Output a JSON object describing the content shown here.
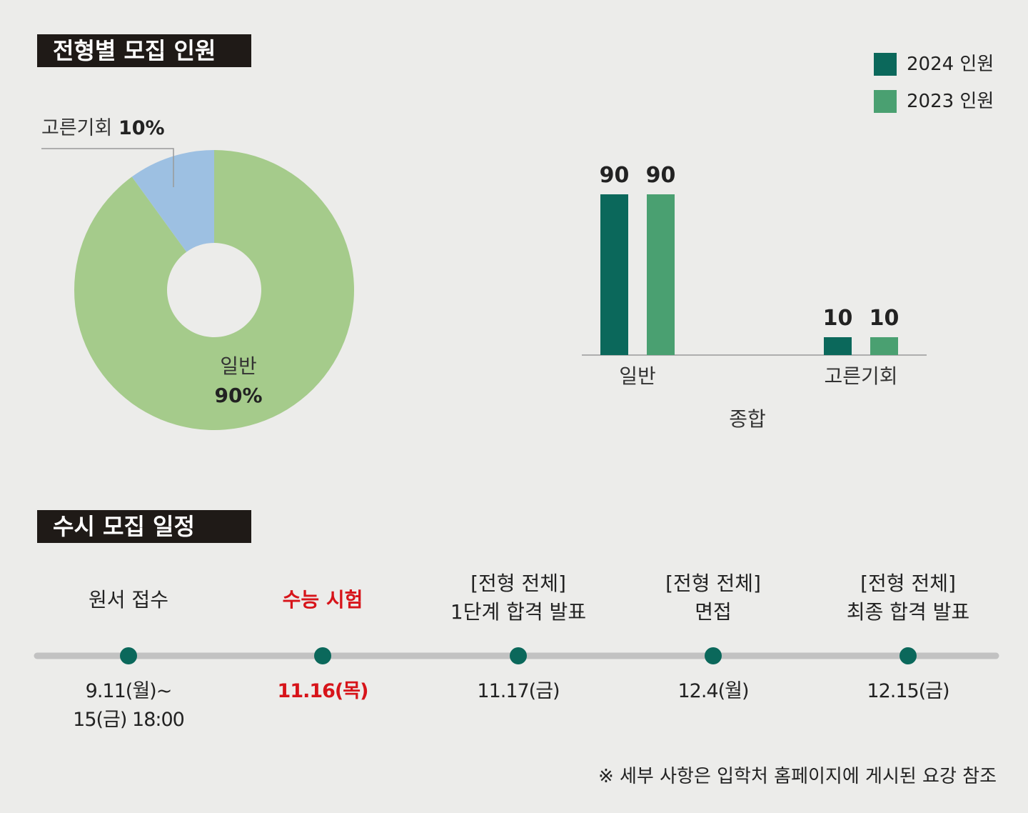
{
  "titles": {
    "recruit": "전형별 모집 인원",
    "schedule": "수시 모집 일정"
  },
  "colors": {
    "dark_green": "#0b685b",
    "mid_green": "#4aa071",
    "light_green": "#a5cb8b",
    "light_blue": "#9dc0e2",
    "red": "#d7141a",
    "timeline_line": "#c2c2c2"
  },
  "chart_data": [
    {
      "type": "pie",
      "variant": "donut",
      "labels": [
        "일반",
        "고른기회"
      ],
      "values": [
        90,
        10
      ],
      "label_texts": [
        {
          "name": "일반",
          "value": "90%"
        },
        {
          "name": "고른기회",
          "value": "10%"
        }
      ]
    },
    {
      "type": "bar",
      "categories": [
        "일반",
        "고른기회"
      ],
      "xlabel": "종합",
      "series": [
        {
          "name": "2024 인원",
          "values": [
            90,
            10
          ]
        },
        {
          "name": "2023 인원",
          "values": [
            90,
            10
          ]
        }
      ],
      "ylim": [
        0,
        90
      ],
      "legend": "top-right"
    }
  ],
  "schedule": {
    "items": [
      {
        "label": [
          "원서 접수"
        ],
        "date": [
          "9.11(월)~",
          "15(금) 18:00"
        ],
        "highlight": false
      },
      {
        "label": [
          "수능 시험"
        ],
        "date": [
          "11.16(목)"
        ],
        "highlight": true
      },
      {
        "label": [
          "[전형 전체]",
          "1단계 합격 발표"
        ],
        "date": [
          "11.17(금)"
        ],
        "highlight": false
      },
      {
        "label": [
          "[전형 전체]",
          "면접"
        ],
        "date": [
          "12.4(월)"
        ],
        "highlight": false
      },
      {
        "label": [
          "[전형 전체]",
          "최종 합격 발표"
        ],
        "date": [
          "12.15(금)"
        ],
        "highlight": false
      }
    ]
  },
  "footnote": "※ 세부 사항은 입학처 홈페이지에 게시된 요강 참조"
}
